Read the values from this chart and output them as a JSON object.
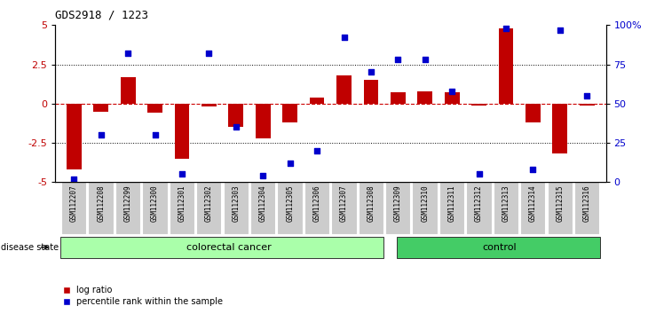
{
  "title": "GDS2918 / 1223",
  "samples": [
    "GSM112207",
    "GSM112208",
    "GSM112299",
    "GSM112300",
    "GSM112301",
    "GSM112302",
    "GSM112303",
    "GSM112304",
    "GSM112305",
    "GSM112306",
    "GSM112307",
    "GSM112308",
    "GSM112309",
    "GSM112310",
    "GSM112311",
    "GSM112312",
    "GSM112313",
    "GSM112314",
    "GSM112315",
    "GSM112316"
  ],
  "log_ratio": [
    -4.2,
    -0.5,
    1.7,
    -0.6,
    -3.5,
    -0.2,
    -1.5,
    -2.2,
    -1.2,
    0.4,
    1.8,
    1.5,
    0.7,
    0.8,
    0.7,
    -0.1,
    4.8,
    -1.2,
    -3.2,
    -0.1
  ],
  "percentile": [
    2.0,
    30.0,
    82.0,
    30.0,
    5.0,
    82.0,
    35.0,
    4.0,
    12.0,
    20.0,
    92.0,
    70.0,
    78.0,
    78.0,
    58.0,
    5.0,
    98.0,
    8.0,
    97.0,
    55.0
  ],
  "colorectal_cancer_count": 12,
  "ylim": [
    -5,
    5
  ],
  "yticks_left": [
    -5,
    -2.5,
    0,
    2.5,
    5
  ],
  "yticks_right": [
    0,
    25,
    50,
    75,
    100
  ],
  "bar_color": "#c00000",
  "dot_color": "#0000cc",
  "zero_line_color": "#cc0000",
  "dotted_line_color": "#000000",
  "tick_area_color": "#cccccc",
  "cancer_bg_color": "#aaffaa",
  "control_bg_color": "#44cc66",
  "legend_bar_label": "log ratio",
  "legend_dot_label": "percentile rank within the sample",
  "disease_state_label": "disease state",
  "cancer_label": "colorectal cancer",
  "control_label": "control"
}
